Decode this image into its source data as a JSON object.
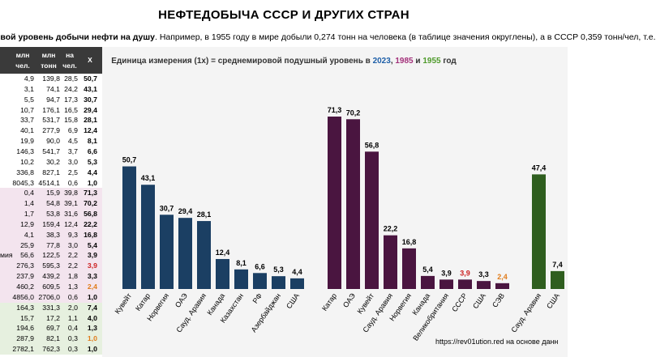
{
  "title": "НЕФТЕДОБЫЧА СССР И ДРУГИХ СТРАН",
  "subtitle": {
    "bold": "овой уровень добычи нефти на душу",
    "rest": ". Например, в 1955 году в мире добыли 0,274 тонн на человека (в таблице значения округлены), а в СССР 0,359 тонн/чел, т.е."
  },
  "note": {
    "text": "Единица измерения (1х) = среднемировой подушный уровень в ",
    "y2023": "2023",
    "sep1": ", ",
    "y1985": "1985",
    "sep2": " и ",
    "y1955": "1955",
    "tail": " год"
  },
  "source": {
    "url": "https://rev01ution.red",
    "text": " на основе данн"
  },
  "colors": {
    "y2023": "#1b3f63",
    "y1985": "#4a1540",
    "y1955": "#2f5e1f",
    "red": "#cc1f1f",
    "orange": "#e07b1a",
    "header_bg": "#3a3a3a"
  },
  "table": {
    "headers": [
      "млн чел.",
      "млн тонн",
      "на чел.",
      "X"
    ],
    "rows": [
      {
        "label": "",
        "pop": "4,9",
        "tons": "139,8",
        "per": "28,5",
        "x": "50,7",
        "xcolor": "#000",
        "bg": ""
      },
      {
        "label": "",
        "pop": "3,1",
        "tons": "74,1",
        "per": "24,2",
        "x": "43,1",
        "xcolor": "#000",
        "bg": ""
      },
      {
        "label": "",
        "pop": "5,5",
        "tons": "94,7",
        "per": "17,3",
        "x": "30,7",
        "xcolor": "#000",
        "bg": ""
      },
      {
        "label": "",
        "pop": "10,7",
        "tons": "176,1",
        "per": "16,5",
        "x": "29,4",
        "xcolor": "#000",
        "bg": ""
      },
      {
        "label": "",
        "pop": "33,7",
        "tons": "531,7",
        "per": "15,8",
        "x": "28,1",
        "xcolor": "#000",
        "bg": ""
      },
      {
        "label": "",
        "pop": "40,1",
        "tons": "277,9",
        "per": "6,9",
        "x": "12,4",
        "xcolor": "#000",
        "bg": ""
      },
      {
        "label": "",
        "pop": "19,9",
        "tons": "90,0",
        "per": "4,5",
        "x": "8,1",
        "xcolor": "#000",
        "bg": ""
      },
      {
        "label": "",
        "pop": "146,3",
        "tons": "541,7",
        "per": "3,7",
        "x": "6,6",
        "xcolor": "#000",
        "bg": ""
      },
      {
        "label": "",
        "pop": "10,2",
        "tons": "30,2",
        "per": "3,0",
        "x": "5,3",
        "xcolor": "#000",
        "bg": ""
      },
      {
        "label": "",
        "pop": "336,8",
        "tons": "827,1",
        "per": "2,5",
        "x": "4,4",
        "xcolor": "#000",
        "bg": ""
      },
      {
        "label": "",
        "pop": "8045,3",
        "tons": "4514,1",
        "per": "0,6",
        "x": "1,0",
        "xcolor": "#000",
        "bg": ""
      },
      {
        "label": "",
        "pop": "0,4",
        "tons": "15,9",
        "per": "39,8",
        "x": "71,3",
        "xcolor": "#000",
        "bg": "#f3e4ee"
      },
      {
        "label": "",
        "pop": "1,4",
        "tons": "54,8",
        "per": "39,1",
        "x": "70,2",
        "xcolor": "#000",
        "bg": "#f3e4ee"
      },
      {
        "label": "",
        "pop": "1,7",
        "tons": "53,8",
        "per": "31,6",
        "x": "56,8",
        "xcolor": "#000",
        "bg": "#f3e4ee"
      },
      {
        "label": "",
        "pop": "12,9",
        "tons": "159,4",
        "per": "12,4",
        "x": "22,2",
        "xcolor": "#000",
        "bg": "#f3e4ee"
      },
      {
        "label": "",
        "pop": "4,1",
        "tons": "38,3",
        "per": "9,3",
        "x": "16,8",
        "xcolor": "#000",
        "bg": "#f3e4ee"
      },
      {
        "label": "",
        "pop": "25,9",
        "tons": "77,8",
        "per": "3,0",
        "x": "5,4",
        "xcolor": "#000",
        "bg": "#f3e4ee"
      },
      {
        "label": "мия",
        "pop": "56,6",
        "tons": "122,5",
        "per": "2,2",
        "x": "3,9",
        "xcolor": "#000",
        "bg": "#f3e4ee"
      },
      {
        "label": "",
        "pop": "276,3",
        "tons": "595,3",
        "per": "2,2",
        "x": "3,9",
        "xcolor": "#cc1f1f",
        "bg": "#f3e4ee"
      },
      {
        "label": "",
        "pop": "237,9",
        "tons": "439,2",
        "per": "1,8",
        "x": "3,3",
        "xcolor": "#000",
        "bg": "#f3e4ee"
      },
      {
        "label": "",
        "pop": "460,2",
        "tons": "609,5",
        "per": "1,3",
        "x": "2,4",
        "xcolor": "#e07b1a",
        "bg": "#f3e4ee"
      },
      {
        "label": "",
        "pop": "4856,0",
        "tons": "2706,0",
        "per": "0,6",
        "x": "1,0",
        "xcolor": "#000",
        "bg": "#f3e4ee"
      },
      {
        "label": "",
        "pop": "164,3",
        "tons": "331,3",
        "per": "2,0",
        "x": "7,4",
        "xcolor": "#000",
        "bg": "#e6f0df"
      },
      {
        "label": "",
        "pop": "15,7",
        "tons": "17,2",
        "per": "1,1",
        "x": "4,0",
        "xcolor": "#000",
        "bg": "#e6f0df"
      },
      {
        "label": "",
        "pop": "194,6",
        "tons": "69,7",
        "per": "0,4",
        "x": "1,3",
        "xcolor": "#000",
        "bg": "#e6f0df"
      },
      {
        "label": "",
        "pop": "287,9",
        "tons": "82,1",
        "per": "0,3",
        "x": "1,0",
        "xcolor": "#e07b1a",
        "bg": "#e6f0df"
      },
      {
        "label": "",
        "pop": "2782,1",
        "tons": "762,3",
        "per": "0,3",
        "x": "1,0",
        "xcolor": "#000",
        "bg": "#e6f0df"
      }
    ]
  },
  "chart_data": {
    "type": "bar",
    "ylim": [
      0,
      80
    ],
    "groups": [
      {
        "year": "2023",
        "color": "#1b3f63",
        "categories": [
          "Кувейт",
          "Катар",
          "Норвегия",
          "ОАЭ",
          "Сауд. Аравия",
          "Канада",
          "Казахстан",
          "РФ",
          "Азербайджан",
          "США"
        ],
        "values": [
          50.7,
          43.1,
          30.7,
          29.4,
          28.1,
          12.4,
          8.1,
          6.6,
          5.3,
          4.4
        ],
        "labels": [
          "50,7",
          "43,1",
          "30,7",
          "29,4",
          "28,1",
          "12,4",
          "8,1",
          "6,6",
          "5,3",
          "4,4"
        ],
        "label_colors": [
          "#000",
          "#000",
          "#000",
          "#000",
          "#000",
          "#000",
          "#000",
          "#000",
          "#000",
          "#000"
        ]
      },
      {
        "year": "1985",
        "color": "#4a1540",
        "categories": [
          "Катар",
          "ОАЭ",
          "Кувейт",
          "Сауд. Аравия",
          "Норвегия",
          "Канада",
          "Великобритания",
          "СССР",
          "США",
          "СЭВ"
        ],
        "values": [
          71.3,
          70.2,
          56.8,
          22.2,
          16.8,
          5.4,
          3.9,
          3.9,
          3.3,
          2.4
        ],
        "labels": [
          "71,3",
          "70,2",
          "56,8",
          "22,2",
          "16,8",
          "5,4",
          "3,9",
          "3,9",
          "3,3",
          "2,4"
        ],
        "label_colors": [
          "#000",
          "#000",
          "#000",
          "#000",
          "#000",
          "#000",
          "#000",
          "#cc1f1f",
          "#000",
          "#e07b1a"
        ]
      },
      {
        "year": "1955",
        "color": "#2f5e1f",
        "categories": [
          "Сауд. Аравия",
          "США"
        ],
        "values": [
          47.4,
          7.4
        ],
        "labels": [
          "47,4",
          "7,4"
        ],
        "label_colors": [
          "#000",
          "#000"
        ]
      }
    ]
  }
}
